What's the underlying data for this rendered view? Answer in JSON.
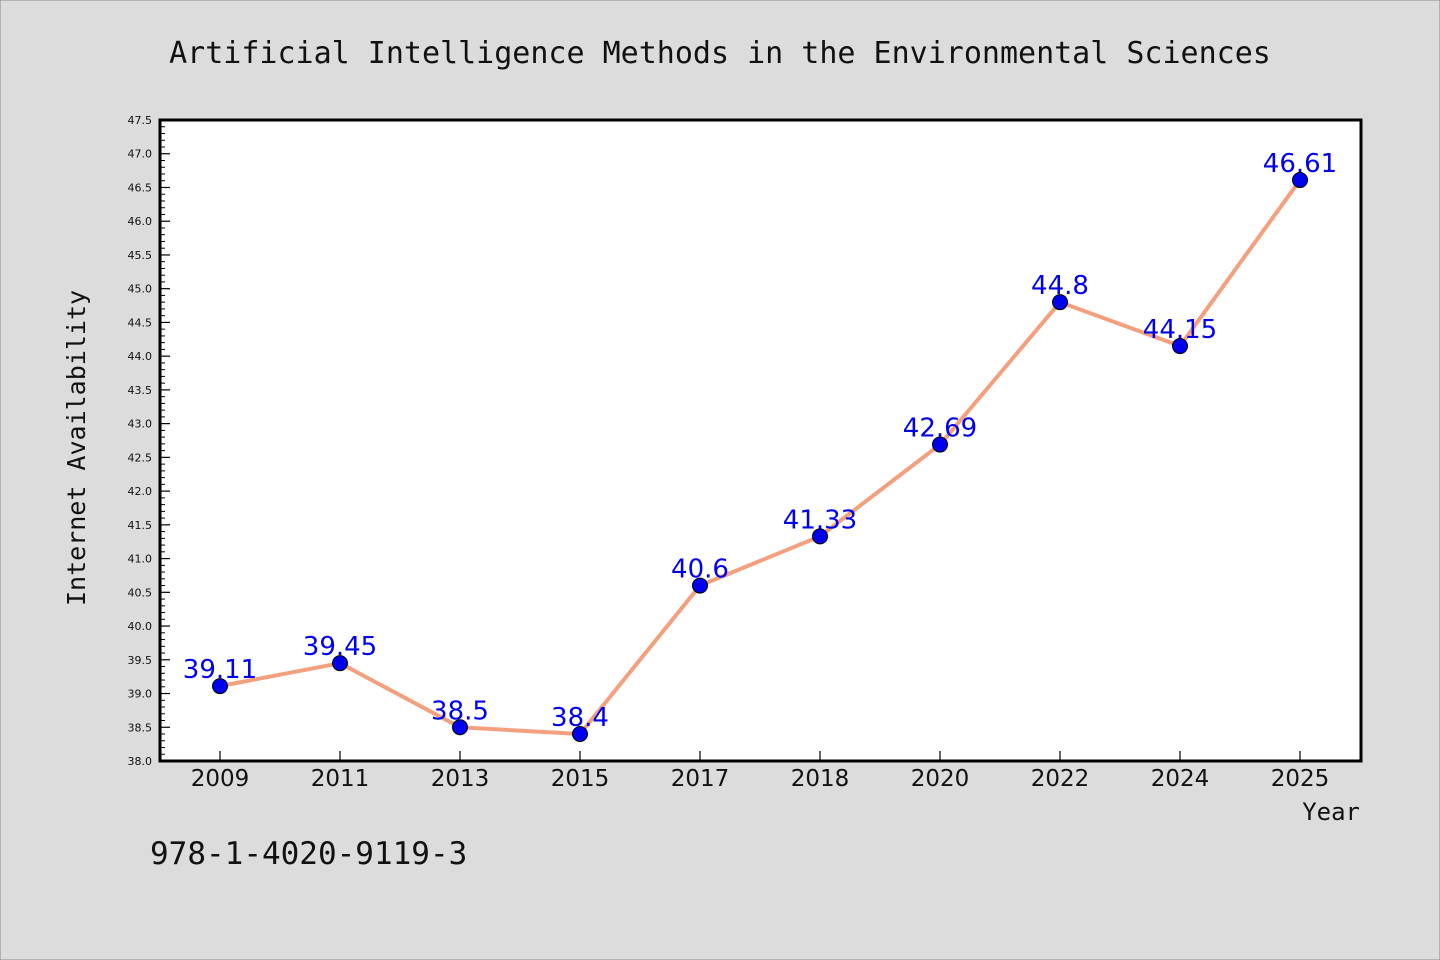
{
  "chart_data": {
    "type": "line",
    "title": "Artificial Intelligence Methods in the Environmental Sciences",
    "xlabel": "Year",
    "ylabel": "Internet Availability",
    "categories": [
      "2009",
      "2011",
      "2013",
      "2015",
      "2017",
      "2018",
      "2020",
      "2022",
      "2024",
      "2025"
    ],
    "values": [
      39.11,
      39.45,
      38.5,
      38.4,
      40.6,
      41.33,
      42.69,
      44.8,
      44.15,
      46.61
    ],
    "data_labels": [
      "39.11",
      "39.45",
      "38.5",
      "38.4",
      "40.6",
      "41.33",
      "42.69",
      "44.8",
      "44.15",
      "46.61"
    ],
    "ylim": [
      38.0,
      47.5
    ],
    "y_ticks": [
      "38.0",
      "38.5",
      "39.0",
      "39.5",
      "40.0",
      "40.5",
      "41.0",
      "41.5",
      "42.0",
      "42.5",
      "43.0",
      "43.5",
      "44.0",
      "44.5",
      "45.0",
      "45.5",
      "46.0",
      "46.5",
      "47.0",
      "47.5"
    ],
    "grid": false,
    "line_color": "#f4a07e",
    "marker_color": "#0000ee",
    "label_color": "#0000ee"
  },
  "footnote": "978-1-4020-9119-3"
}
